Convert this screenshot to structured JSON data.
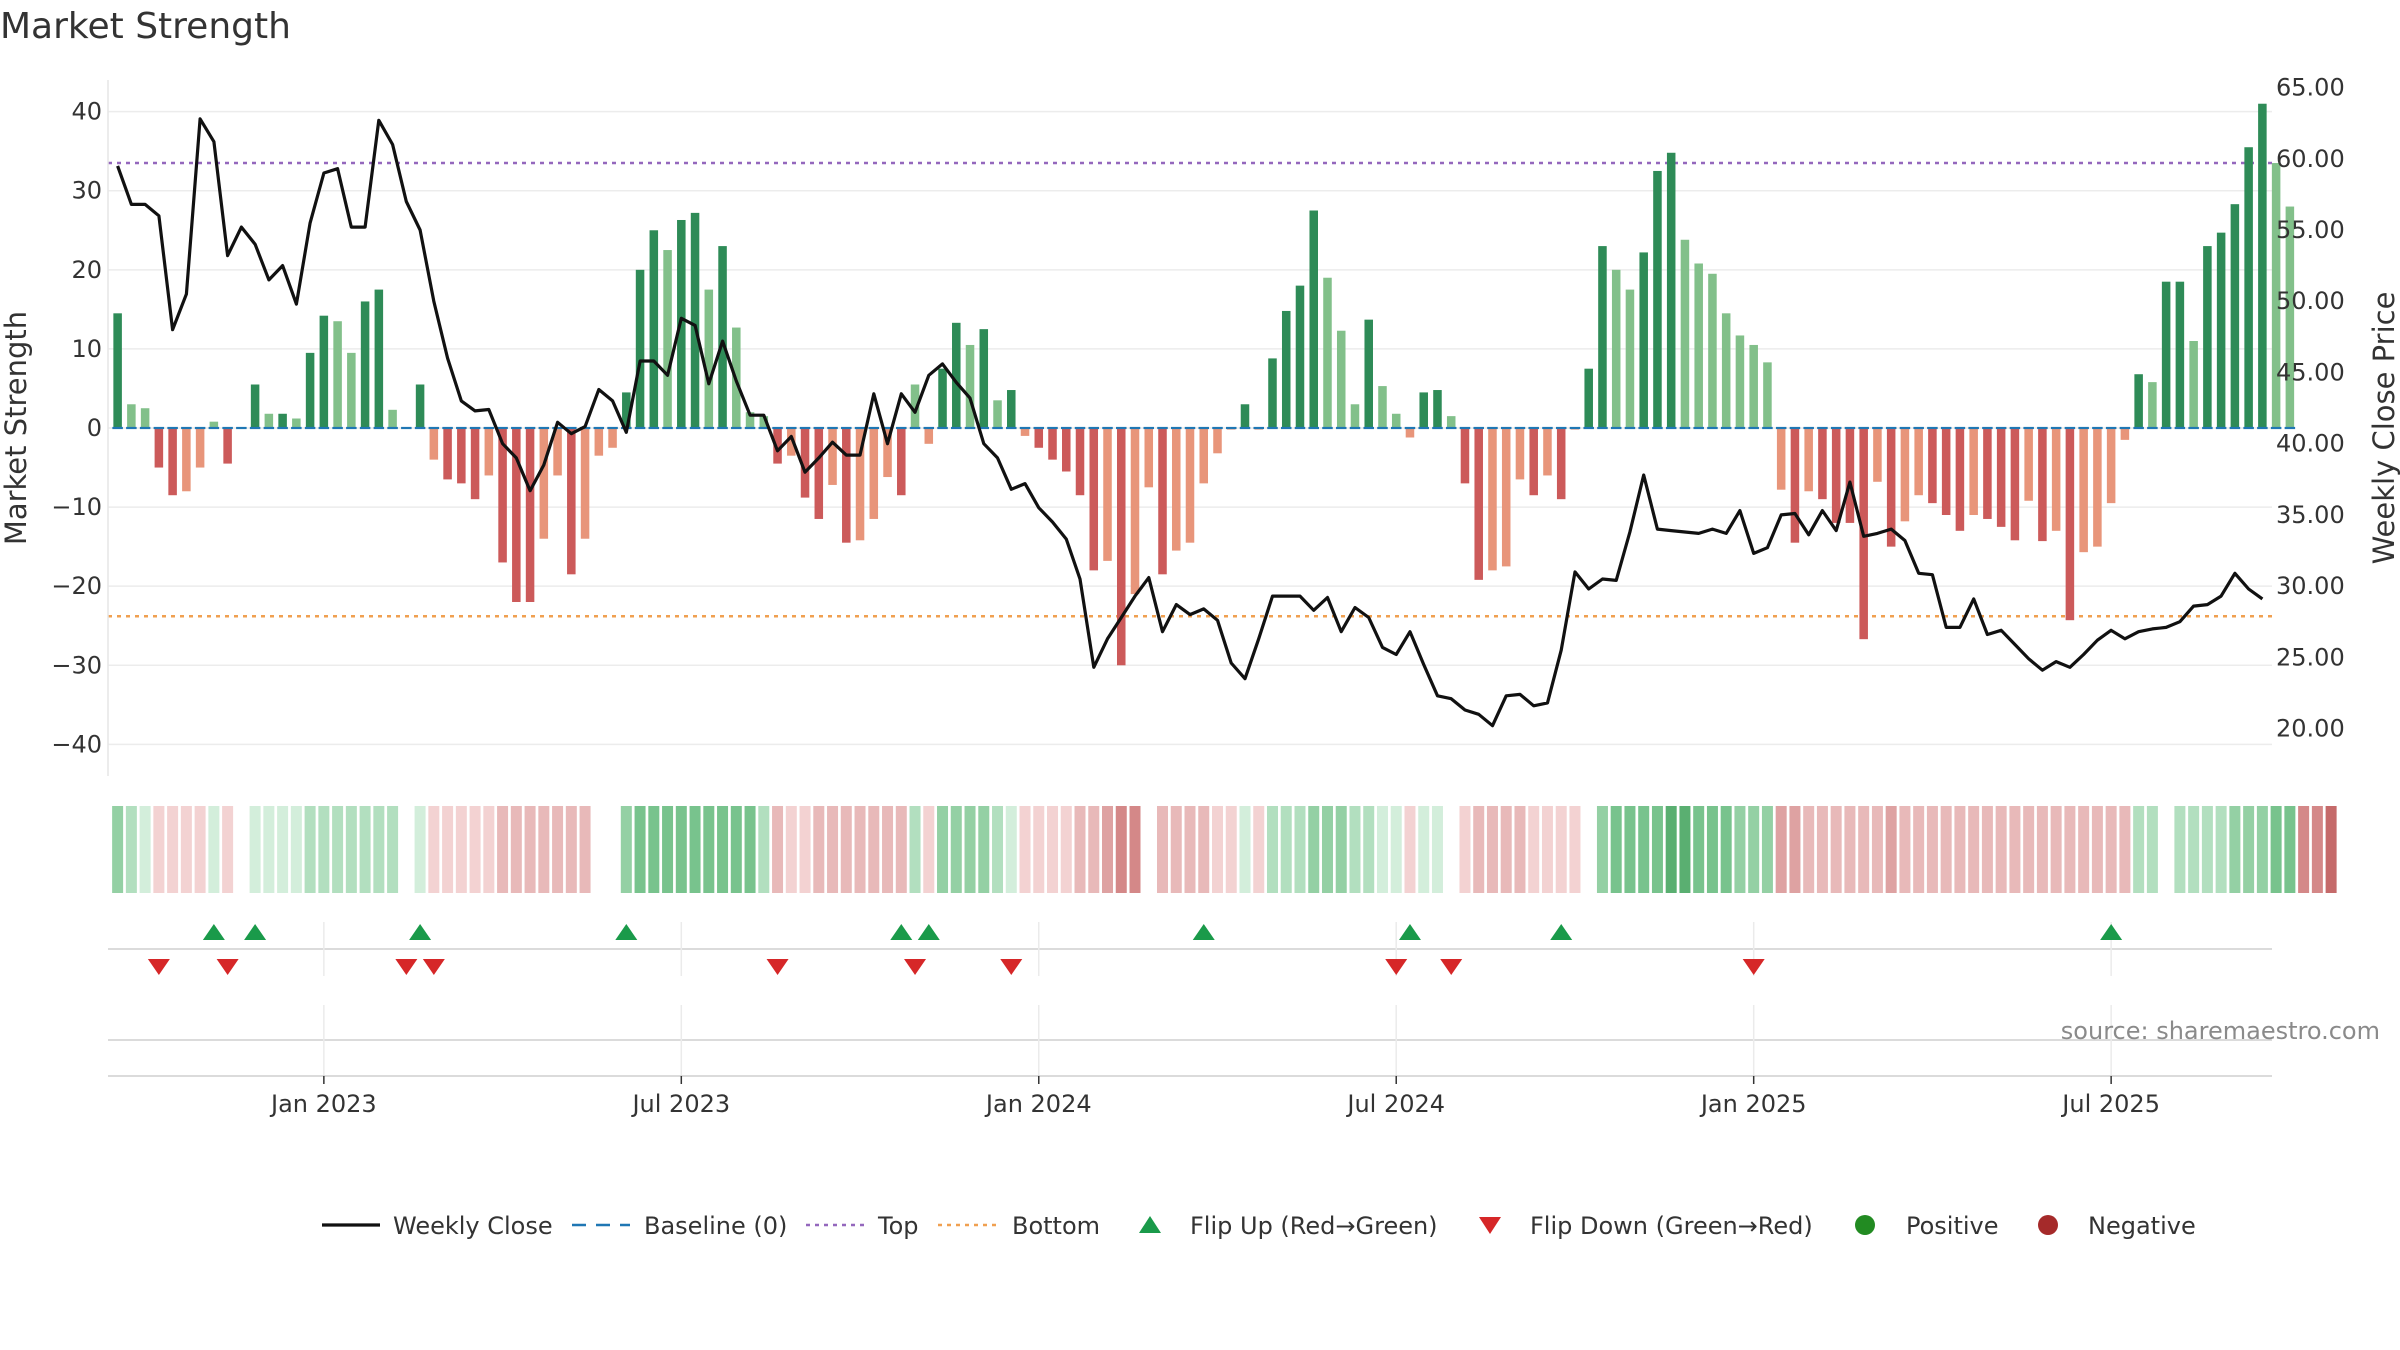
{
  "chart_data": {
    "type": "bar",
    "title": "Market Strength",
    "ylabel_left": "Market Strength",
    "ylabel_right": "Weekly Close Price",
    "ylim_left": [
      -44,
      44
    ],
    "ylim_right": [
      16.67,
      65.53
    ],
    "yticks_left": [
      40,
      30,
      20,
      10,
      0,
      -10,
      -20,
      -30,
      -40
    ],
    "ytick_labels_left": [
      "40",
      "30",
      "20",
      "10",
      "0",
      "−10",
      "−20",
      "−30",
      "−40"
    ],
    "yticks_right": [
      65,
      60,
      55,
      50,
      45,
      40,
      35,
      30,
      25,
      20
    ],
    "ytick_labels_right": [
      "65.00",
      "60.00",
      "55.00",
      "50.00",
      "45.00",
      "40.00",
      "35.00",
      "30.00",
      "25.00",
      "20.00"
    ],
    "x_range": [
      -0.7,
      156.7
    ],
    "xticks": [
      15,
      41,
      67,
      93,
      119,
      145
    ],
    "xtick_labels": [
      "Jan 2023",
      "Jul 2023",
      "Jan 2024",
      "Jul 2024",
      "Jan 2025",
      "Jul 2025"
    ],
    "top_line": 33.5,
    "bottom_line": -23.8,
    "weeks": 157,
    "market_strength": [
      14.5,
      3,
      2.5,
      -5,
      -8.5,
      -8,
      -5,
      0.8,
      -4.5,
      0,
      5.5,
      1.8,
      1.8,
      1.2,
      9.5,
      14.2,
      13.5,
      9.5,
      16,
      17.5,
      2.3,
      0,
      5.5,
      -4,
      -6.5,
      -7,
      -9,
      -6,
      -17,
      -22,
      -22,
      -14,
      -6,
      -18.5,
      -14,
      -3.5,
      -2.5,
      4.5,
      20,
      25,
      22.5,
      26.3,
      27.2,
      17.5,
      23,
      12.7,
      2,
      1.5,
      -4.5,
      -3.5,
      -8.8,
      -11.5,
      -7.2,
      -14.5,
      -14.2,
      -11.5,
      -6.2,
      -8.5,
      5.5,
      -2,
      7.5,
      13.3,
      10.5,
      12.5,
      3.5,
      4.8,
      -1,
      -2.5,
      -4,
      -5.5,
      -8.5,
      -18,
      -16.8,
      -30,
      -21,
      -7.5,
      -18.5,
      -15.5,
      -14.5,
      -7,
      -3.2,
      -0.2,
      3,
      -0.2,
      8.8,
      14.8,
      18,
      27.5,
      19,
      12.3,
      3,
      13.7,
      5.3,
      1.8,
      -1.2,
      4.5,
      4.8,
      1.5,
      -7,
      -19.2,
      -18,
      -17.5,
      -6.5,
      -8.5,
      -6,
      -9,
      -0.2,
      7.5,
      23,
      20,
      17.5,
      22.2,
      32.5,
      34.8,
      23.8,
      20.8,
      19.5,
      14.5,
      11.7,
      10.5,
      8.3,
      -7.8,
      -14.5,
      -8,
      -9,
      -12,
      -12,
      -26.7,
      -6.8,
      -15,
      -11.8,
      -8.5,
      -9.5,
      -11,
      -13,
      -11,
      -11.5,
      -12.5,
      -14.2,
      -9.2,
      -14.3,
      -13,
      -24.3,
      -15.7,
      -15,
      -9.5,
      -1.5,
      6.8,
      5.8,
      18.5,
      18.5,
      11,
      23,
      24.7,
      28.3,
      35.5,
      41,
      33.5,
      28
    ],
    "weekly_close": [
      59.5,
      56.8,
      56.8,
      56,
      48,
      50.5,
      62.8,
      61.2,
      53.2,
      55.2,
      54,
      51.5,
      52.5,
      49.8,
      55.5,
      59,
      59.3,
      55.2,
      55.2,
      62.7,
      61,
      57,
      55,
      50,
      46,
      43,
      42.3,
      42.4,
      40,
      39,
      36.7,
      38.5,
      41.5,
      40.7,
      41.2,
      43.8,
      43,
      40.8,
      45.8,
      45.8,
      44.8,
      48.8,
      48.3,
      44.2,
      47.2,
      44.4,
      42,
      42,
      39.5,
      40.5,
      38,
      39,
      40.1,
      39.2,
      39.2,
      43.5,
      40,
      43.5,
      42.2,
      44.8,
      45.6,
      44.3,
      43.2,
      40,
      39,
      36.8,
      37.2,
      35.5,
      34.5,
      33.3,
      30.5,
      24.3,
      26.3,
      27.8,
      29.3,
      30.6,
      26.8,
      28.7,
      28,
      28.4,
      27.6,
      24.6,
      23.5,
      26.3,
      29.3,
      29.3,
      29.3,
      28.3,
      29.2,
      26.8,
      28.5,
      27.8,
      25.7,
      25.2,
      26.8,
      24.5,
      22.3,
      22.1,
      21.3,
      21,
      20.2,
      22.3,
      22.4,
      21.6,
      21.8,
      25.5,
      31,
      29.8,
      30.5,
      30.4,
      33.8,
      37.8,
      34,
      33.9,
      33.8,
      33.7,
      34,
      33.7,
      35.3,
      32.3,
      32.7,
      35,
      35.1,
      33.6,
      35.3,
      33.9,
      37.3,
      33.5,
      33.7,
      34,
      33.2,
      30.9,
      30.8,
      27.1,
      27.1,
      29.1,
      26.6,
      26.9,
      25.9,
      24.9,
      24.1,
      24.7,
      24.3,
      25.2,
      26.2,
      26.9,
      26.3,
      26.8,
      27,
      27.1,
      27.5,
      28.6,
      28.7,
      29.3,
      30.9,
      29.8,
      29.1
    ],
    "tiles": [
      3,
      2,
      1,
      1,
      1,
      1,
      1,
      1,
      1,
      0,
      1,
      1,
      1,
      1,
      2,
      2,
      2,
      2,
      2,
      2,
      2,
      0,
      1,
      1,
      1,
      1,
      1,
      1,
      2,
      2,
      2,
      2,
      2,
      2,
      2,
      0,
      0,
      3,
      4,
      4,
      4,
      4,
      4,
      4,
      4,
      4,
      4,
      2,
      2,
      1,
      1,
      2,
      2,
      2,
      2,
      2,
      2,
      2,
      2,
      1,
      3,
      3,
      3,
      3,
      2,
      1,
      1,
      1,
      1,
      1,
      2,
      2,
      3,
      4,
      4,
      0,
      2,
      2,
      2,
      2,
      1,
      1,
      1,
      1,
      2,
      2,
      2,
      3,
      3,
      3,
      2,
      2,
      1,
      1,
      1,
      1,
      1,
      0,
      1,
      2,
      2,
      2,
      2,
      1,
      1,
      1,
      1,
      0,
      3,
      4,
      4,
      4,
      4,
      5,
      5,
      4,
      4,
      4,
      3,
      3,
      3,
      3,
      3,
      2,
      2,
      2,
      2,
      2,
      2,
      3,
      2,
      2,
      2,
      2,
      2,
      2,
      2,
      2,
      2,
      2,
      2,
      2,
      2,
      2,
      2,
      2,
      2,
      2,
      2,
      0,
      2,
      2,
      2,
      2,
      3,
      3,
      3,
      4,
      4,
      4,
      4,
      5
    ],
    "flip_up_weeks": [
      7,
      10,
      22,
      37,
      57,
      59,
      79,
      94,
      105,
      145
    ],
    "flip_down_weeks": [
      3,
      8,
      21,
      23,
      48,
      58,
      65,
      93,
      97,
      119
    ],
    "colors": {
      "bar_pos_strong": "#2e8b57",
      "bar_pos_weak": "#82c08a",
      "bar_neg_strong": "#cc5a5a",
      "bar_neg_weak": "#e8957a",
      "close_line": "#111111",
      "baseline": "#1f77b4",
      "top": "#9467bd",
      "bottom": "#f0a050",
      "flip_up": "#1a9a4a",
      "flip_down": "#d62728",
      "positive": "#228b22",
      "negative": "#a52a2a",
      "grid": "#ececec",
      "pos_tiles": [
        "#d3eedb",
        "#b2dfbf",
        "#94d0a4",
        "#78c38d",
        "#5aaf71"
      ],
      "neg_tiles": [
        "#f3d2d2",
        "#e8b9b9",
        "#dea2a2",
        "#d48888",
        "#c56a6a"
      ]
    },
    "legend": [
      {
        "label": "Weekly Close",
        "marker": "line-solid",
        "color": "#111111"
      },
      {
        "label": "Baseline (0)",
        "marker": "line-dashed",
        "color": "#1f77b4"
      },
      {
        "label": "Top",
        "marker": "line-dotted",
        "color": "#9467bd"
      },
      {
        "label": "Bottom",
        "marker": "line-dotted",
        "color": "#f0a050"
      },
      {
        "label": "Flip Up (Red→Green)",
        "marker": "triangle-up",
        "color": "#1a9a4a"
      },
      {
        "label": "Flip Down (Green→Red)",
        "marker": "triangle-down",
        "color": "#d62728"
      },
      {
        "label": "Positive",
        "marker": "dot",
        "color": "#228b22"
      },
      {
        "label": "Negative",
        "marker": "dot",
        "color": "#a52a2a"
      }
    ]
  },
  "source": "source: sharemaestro.com"
}
